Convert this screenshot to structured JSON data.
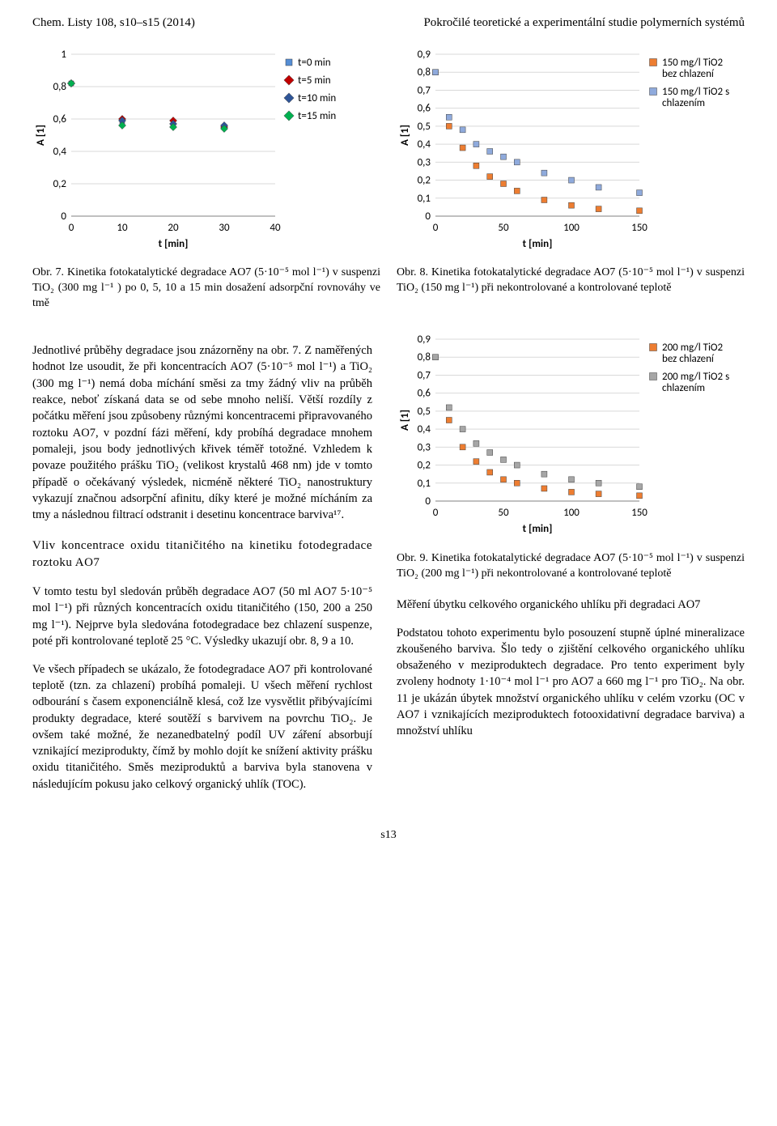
{
  "header": {
    "left": "Chem. Listy 108, s10–s15 (2014)",
    "right": "Pokročilé teoretické a experimentální studie polymerních systémů"
  },
  "chart7": {
    "type": "scatter",
    "xlim": [
      0,
      40
    ],
    "ylim": [
      0,
      1
    ],
    "xticks": [
      0,
      10,
      20,
      30,
      40
    ],
    "yticks": [
      0,
      0.2,
      0.4,
      0.6,
      0.8,
      1
    ],
    "xtick_labels": [
      "0",
      "10",
      "20",
      "30",
      "40"
    ],
    "ytick_labels": [
      "0",
      "0,2",
      "0,4",
      "0,6",
      "0,8",
      "1"
    ],
    "xlabel": "t [min]",
    "ylabel": "A [1]",
    "grid_color": "#d9d9d9",
    "background_color": "#ffffff",
    "axis_color": "#808080",
    "marker_size": 6,
    "series": [
      {
        "label": "t=0 min",
        "color": "#558ed5",
        "shape": "square",
        "data": [
          [
            0,
            0.82
          ],
          [
            10,
            0.57
          ],
          [
            20,
            0.56
          ],
          [
            30,
            0.55
          ]
        ]
      },
      {
        "label": "t=5 min",
        "color": "#c00000",
        "shape": "diamond",
        "data": [
          [
            0,
            0.82
          ],
          [
            10,
            0.6
          ],
          [
            20,
            0.59
          ],
          [
            30,
            0.55
          ]
        ]
      },
      {
        "label": "t=10 min",
        "color": "#2f5597",
        "shape": "diamond",
        "data": [
          [
            0,
            0.82
          ],
          [
            10,
            0.59
          ],
          [
            20,
            0.57
          ],
          [
            30,
            0.56
          ]
        ]
      },
      {
        "label": "t=15 min",
        "color": "#00b050",
        "shape": "diamond",
        "data": [
          [
            0,
            0.82
          ],
          [
            10,
            0.56
          ],
          [
            20,
            0.55
          ],
          [
            30,
            0.54
          ]
        ]
      }
    ],
    "legend_pos": "right"
  },
  "chart8": {
    "type": "scatter",
    "xlim": [
      0,
      150
    ],
    "ylim": [
      0,
      0.9
    ],
    "xticks": [
      0,
      50,
      100,
      150
    ],
    "yticks": [
      0,
      0.1,
      0.2,
      0.3,
      0.4,
      0.5,
      0.6,
      0.7,
      0.8,
      0.9
    ],
    "xtick_labels": [
      "0",
      "50",
      "100",
      "150"
    ],
    "ytick_labels": [
      "0",
      "0,1",
      "0,2",
      "0,3",
      "0,4",
      "0,5",
      "0,6",
      "0,7",
      "0,8",
      "0,9"
    ],
    "xlabel": "t [min]",
    "ylabel": "A [1]",
    "grid_color": "#d9d9d9",
    "background_color": "#ffffff",
    "axis_color": "#808080",
    "marker_size": 7,
    "series": [
      {
        "label": "150 mg/l TiO2 bez chlazení",
        "color": "#ed7d31",
        "shape": "square",
        "data": [
          [
            0,
            0.8
          ],
          [
            10,
            0.5
          ],
          [
            20,
            0.38
          ],
          [
            30,
            0.28
          ],
          [
            40,
            0.22
          ],
          [
            50,
            0.18
          ],
          [
            60,
            0.14
          ],
          [
            80,
            0.09
          ],
          [
            100,
            0.06
          ],
          [
            120,
            0.04
          ],
          [
            150,
            0.03
          ]
        ]
      },
      {
        "label": "150 mg/l TiO2 s chlazením",
        "color": "#8faadc",
        "shape": "square",
        "data": [
          [
            0,
            0.8
          ],
          [
            10,
            0.55
          ],
          [
            20,
            0.48
          ],
          [
            30,
            0.4
          ],
          [
            40,
            0.36
          ],
          [
            50,
            0.33
          ],
          [
            60,
            0.3
          ],
          [
            80,
            0.24
          ],
          [
            100,
            0.2
          ],
          [
            120,
            0.16
          ],
          [
            150,
            0.13
          ]
        ]
      }
    ],
    "legend_pos": "right"
  },
  "chart9": {
    "type": "scatter",
    "xlim": [
      0,
      150
    ],
    "ylim": [
      0,
      0.9
    ],
    "xticks": [
      0,
      50,
      100,
      150
    ],
    "yticks": [
      0,
      0.1,
      0.2,
      0.3,
      0.4,
      0.5,
      0.6,
      0.7,
      0.8,
      0.9
    ],
    "xtick_labels": [
      "0",
      "50",
      "100",
      "150"
    ],
    "ytick_labels": [
      "0",
      "0,1",
      "0,2",
      "0,3",
      "0,4",
      "0,5",
      "0,6",
      "0,7",
      "0,8",
      "0,9"
    ],
    "xlabel": "t [min]",
    "ylabel": "A [1]",
    "grid_color": "#d9d9d9",
    "background_color": "#ffffff",
    "axis_color": "#808080",
    "marker_size": 7,
    "series": [
      {
        "label": "200 mg/l TiO2 bez chlazení",
        "color": "#ed7d31",
        "shape": "square",
        "data": [
          [
            0,
            0.8
          ],
          [
            10,
            0.45
          ],
          [
            20,
            0.3
          ],
          [
            30,
            0.22
          ],
          [
            40,
            0.16
          ],
          [
            50,
            0.12
          ],
          [
            60,
            0.1
          ],
          [
            80,
            0.07
          ],
          [
            100,
            0.05
          ],
          [
            120,
            0.04
          ],
          [
            150,
            0.03
          ]
        ]
      },
      {
        "label": "200 mg/l TiO2 s chlazením",
        "color": "#a6a6a6",
        "shape": "square",
        "data": [
          [
            0,
            0.8
          ],
          [
            10,
            0.52
          ],
          [
            20,
            0.4
          ],
          [
            30,
            0.32
          ],
          [
            40,
            0.27
          ],
          [
            50,
            0.23
          ],
          [
            60,
            0.2
          ],
          [
            80,
            0.15
          ],
          [
            100,
            0.12
          ],
          [
            120,
            0.1
          ],
          [
            150,
            0.08
          ]
        ]
      }
    ],
    "legend_pos": "right"
  },
  "captions": {
    "c7": "Obr. 7. Kinetika fotokatalytické degradace AO7 (5·10⁻⁵ mol l⁻¹) v suspenzi TiO₂ (300 mg l⁻¹ ) po 0, 5, 10 a 15 min dosažení adsorpční rovnováhy ve tmě",
    "c8": "Obr. 8. Kinetika fotokatalytické degradace AO7 (5·10⁻⁵ mol l⁻¹) v suspenzi TiO₂ (150 mg l⁻¹) při nekontrolované a kontrolované teplotě",
    "c9": "Obr. 9. Kinetika fotokatalytické degradace AO7 (5·10⁻⁵ mol l⁻¹) v suspenzi TiO₂ (200 mg l⁻¹) při nekontrolované a kontrolované teplotě"
  },
  "body": {
    "p1": "Jednotlivé průběhy degradace jsou znázorněny na obr. 7. Z naměřených hodnot lze usoudit, že při koncentracích AO7 (5·10⁻⁵ mol l⁻¹) a TiO₂ (300 mg l⁻¹) nemá doba míchání směsi za tmy žádný vliv na průběh reakce, neboť získaná data se od sebe mnoho neliší. Větší rozdíly z počátku měření jsou způsobeny různými koncentracemi připravovaného roztoku AO7, v pozdní fázi měření, kdy probíhá degradace mnohem pomaleji, jsou body jednotlivých křivek téměř totožné. Vzhledem k povaze použitého prášku TiO₂ (velikost krystalů 468 nm) jde v tomto případě o očekávaný výsledek, nicméně některé TiO₂ nanostruktury vykazují značnou adsorpční afinitu, díky které je možné mícháním za tmy a následnou filtrací odstranit i desetinu koncentrace barviva¹⁷.",
    "h1": "Vliv koncentrace oxidu titaničitého na kinetiku fotodegradace roztoku AO7",
    "p2": "V tomto testu byl sledován průběh degradace AO7 (50 ml AO7 5·10⁻⁵ mol l⁻¹) při různých koncentracích oxidu titaničitého (150, 200 a 250 mg l⁻¹). Nejprve byla sledována fotodegradace bez chlazení suspenze, poté při kontrolované teplotě 25 °C. Výsledky ukazují obr. 8, 9 a 10.",
    "p3": "Ve všech případech se ukázalo, že fotodegradace AO7 při kontrolované teplotě (tzn. za chlazení) probíhá pomaleji. U všech měření rychlost odbourání s časem exponenciálně klesá, což lze vysvětlit přibývajícími produkty degradace, které soutěží s barvivem na povrchu TiO₂. Je ovšem také možné, že nezanedbatelný podíl UV záření absorbují vznikající meziprodukty, čímž by mohlo dojít ke snížení aktivity prášku oxidu titaničitého. Směs meziproduktů a barviva byla stanovena v následujícím pokusu jako celkový organický uhlík (TOC).",
    "h2": "Měření úbytku celkového organického uhlíku při degradaci AO7",
    "p4": "Podstatou tohoto experimentu bylo posouzení stupně úplné mineralizace zkoušeného barviva. Šlo tedy o zjištění celkového organického uhlíku obsaženého v meziproduktech degradace. Pro tento experiment byly zvoleny hodnoty 1·10⁻⁴ mol l⁻¹ pro AO7 a 660 mg l⁻¹ pro TiO₂. Na obr. 11 je ukázán úbytek množství organického uhlíku v celém vzorku (OC v AO7 i vznikajících meziproduktech fotooxidativní degradace barviva) a množství uhlíku"
  },
  "footer": {
    "page": "s13"
  }
}
